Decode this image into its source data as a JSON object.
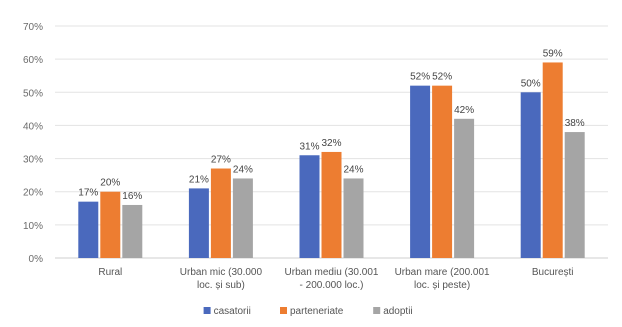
{
  "chart_data": {
    "type": "bar",
    "categories": [
      [
        "Rural"
      ],
      [
        "Urban mic (30.000",
        "loc. și sub)"
      ],
      [
        "Urban mediu (30.001",
        "- 200.000 loc.)"
      ],
      [
        "Urban mare (200.001",
        "loc. și peste)"
      ],
      [
        "București"
      ]
    ],
    "series": [
      {
        "name": "casatorii",
        "color": "#4a69bd",
        "values": [
          17,
          21,
          31,
          52,
          50
        ]
      },
      {
        "name": "parteneriate",
        "color": "#ed7d31",
        "values": [
          20,
          27,
          32,
          52,
          59
        ]
      },
      {
        "name": "adoptii",
        "color": "#a5a5a5",
        "values": [
          16,
          24,
          24,
          42,
          38
        ]
      }
    ],
    "ylim": [
      0,
      70
    ],
    "yticks": [
      "0%",
      "10%",
      "20%",
      "30%",
      "40%",
      "50%",
      "60%",
      "70%"
    ],
    "value_suffix": "%",
    "grid": true,
    "legend_position": "bottom-center"
  }
}
